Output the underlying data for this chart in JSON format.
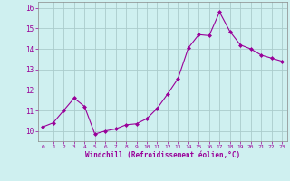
{
  "x": [
    0,
    1,
    2,
    3,
    4,
    5,
    6,
    7,
    8,
    9,
    10,
    11,
    12,
    13,
    14,
    15,
    16,
    17,
    18,
    19,
    20,
    21,
    22,
    23
  ],
  "y": [
    10.2,
    10.4,
    11.0,
    11.6,
    11.2,
    9.85,
    10.0,
    10.1,
    10.3,
    10.35,
    10.6,
    11.1,
    11.8,
    12.55,
    14.05,
    14.7,
    14.65,
    15.8,
    14.85,
    14.2,
    14.0,
    13.7,
    13.55,
    13.4
  ],
  "line_color": "#990099",
  "marker": "D",
  "marker_size": 2.0,
  "bg_color": "#cff0f0",
  "grid_color": "#aacccc",
  "xlabel": "Windchill (Refroidissement éolien,°C)",
  "xlabel_color": "#990099",
  "tick_color": "#990099",
  "ylim": [
    9.5,
    16.3
  ],
  "yticks": [
    10,
    11,
    12,
    13,
    14,
    15,
    16
  ],
  "xticks": [
    0,
    1,
    2,
    3,
    4,
    5,
    6,
    7,
    8,
    9,
    10,
    11,
    12,
    13,
    14,
    15,
    16,
    17,
    18,
    19,
    20,
    21,
    22,
    23
  ],
  "xlim": [
    -0.5,
    23.5
  ],
  "spine_color": "#888888"
}
